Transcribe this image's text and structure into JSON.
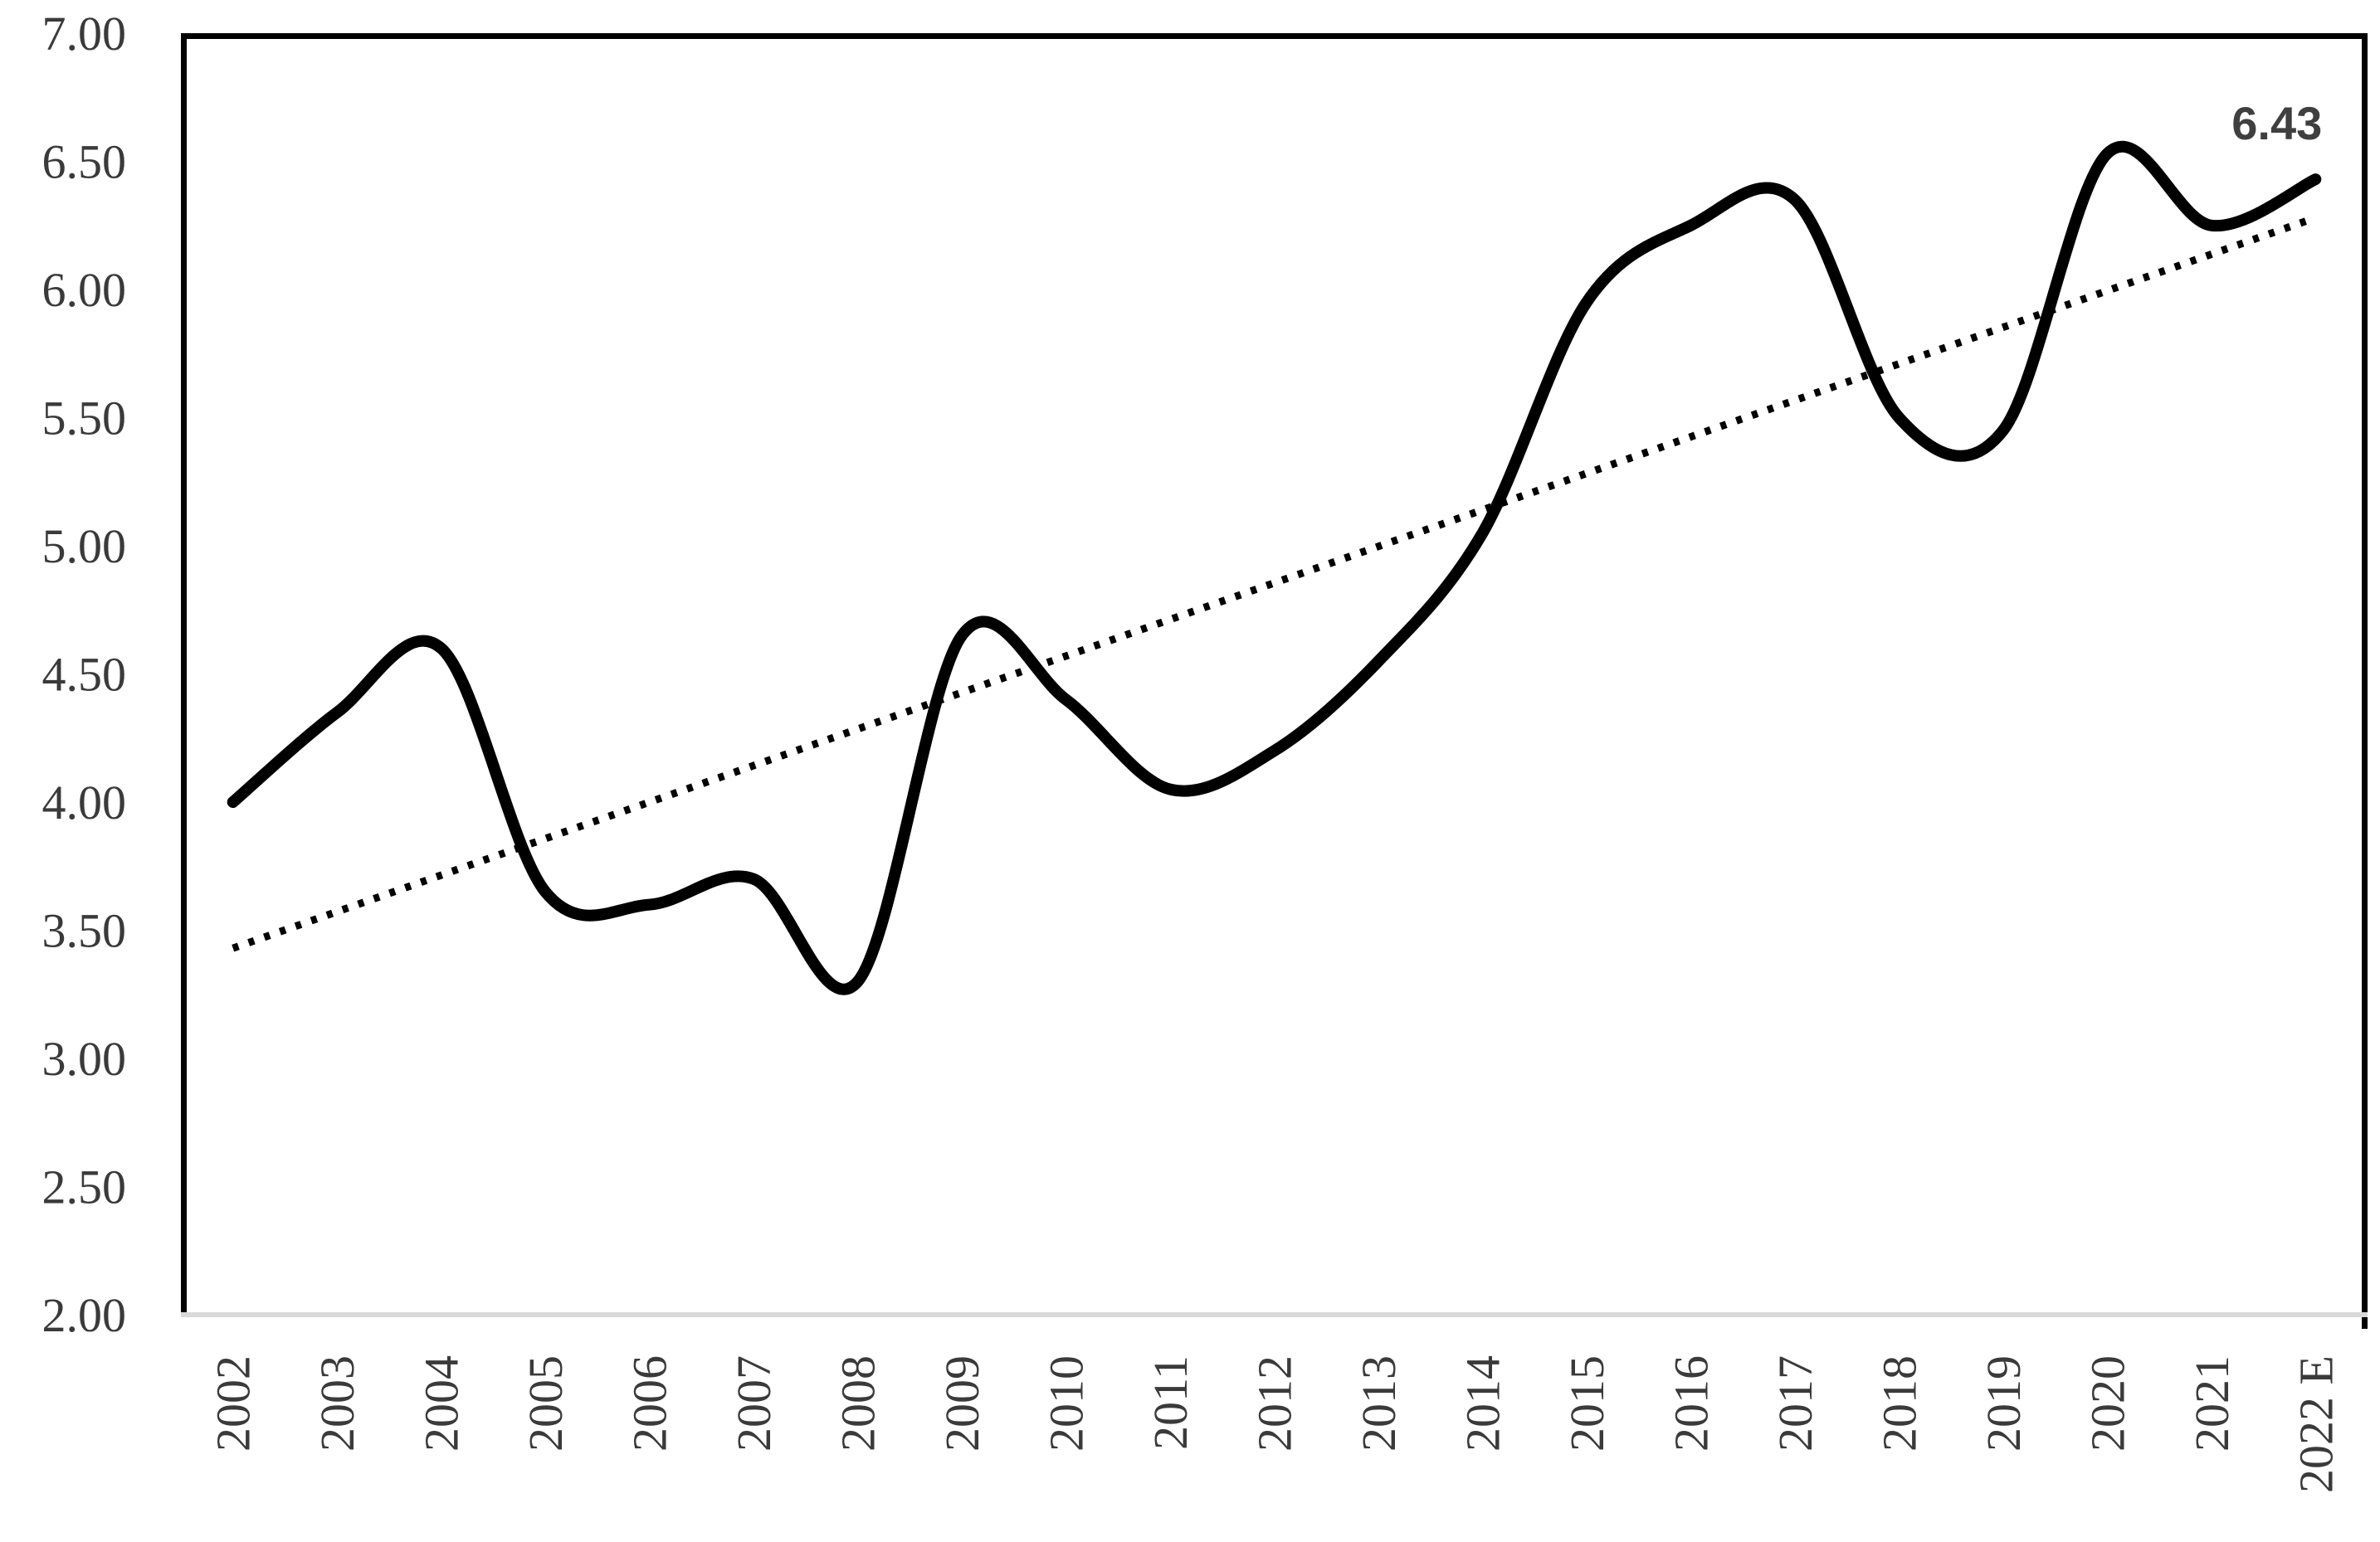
{
  "chart_data": {
    "type": "line",
    "title": "",
    "xlabel": "",
    "ylabel": "",
    "categories": [
      "2002",
      "2003",
      "2004",
      "2005",
      "2006",
      "2007",
      "2008",
      "2009",
      "2010",
      "2011",
      "2012",
      "2013",
      "2014",
      "2015",
      "2016",
      "2017",
      "2018",
      "2019",
      "2020",
      "2021",
      "2022 E"
    ],
    "series": [
      {
        "name": "main-series",
        "style": "solid-thick-smooth",
        "values": [
          4.0,
          4.35,
          4.6,
          3.65,
          3.6,
          3.7,
          3.3,
          4.65,
          4.4,
          4.05,
          4.2,
          4.55,
          5.05,
          5.95,
          6.25,
          6.35,
          5.5,
          5.45,
          6.53,
          6.25,
          6.43
        ]
      }
    ],
    "trendline": {
      "style": "dotted-straight",
      "start_value": 3.43,
      "end_value": 6.28
    },
    "end_label": "6.43",
    "ylim": [
      2.0,
      7.0
    ],
    "ytick_step": 0.5,
    "ytick_labels": [
      "7.00",
      "6.50",
      "6.00",
      "5.50",
      "5.00",
      "4.50",
      "4.00",
      "3.50",
      "3.00",
      "2.50",
      "2.00"
    ],
    "grid": false,
    "legend": false,
    "colors": {
      "line": "#000000",
      "trend": "#000000",
      "axis_text": "#3a3a3a",
      "label_text": "#3f3f3f",
      "border": "#000000",
      "bottom_axis": "#d9d9d9",
      "background": "#ffffff"
    }
  }
}
